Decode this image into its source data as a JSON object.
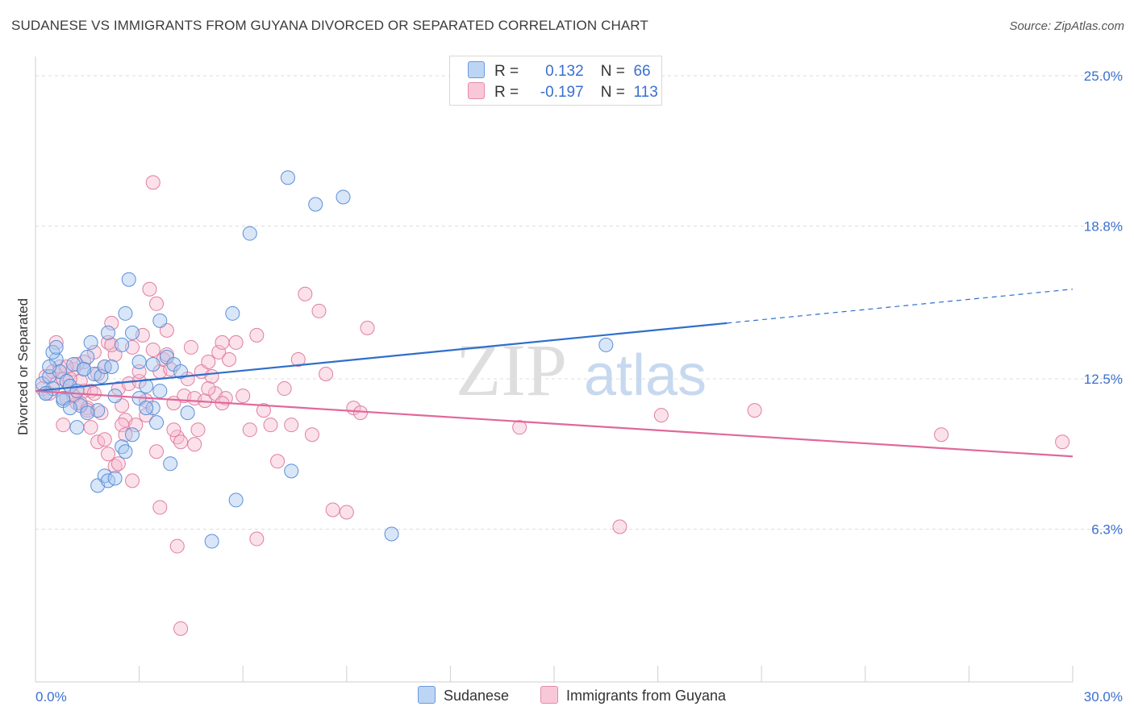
{
  "header": {
    "title": "SUDANESE VS IMMIGRANTS FROM GUYANA DIVORCED OR SEPARATED CORRELATION CHART",
    "source": "Source: ZipAtlas.com"
  },
  "legend": {
    "rows": [
      {
        "r_label": "R =",
        "r_value": "0.132",
        "n_label": "N =",
        "n_value": "66"
      },
      {
        "r_label": "R =",
        "r_value": "-0.197",
        "n_label": "N =",
        "n_value": "113"
      }
    ]
  },
  "watermark": {
    "zip": "ZIP",
    "atlas": "atlas"
  },
  "colors": {
    "sudanese_fill": "#a9c8f0",
    "sudanese_stroke": "#5b8fd8",
    "sudanese_line": "#2f6fcb",
    "guyana_fill": "#f7bcd0",
    "guyana_stroke": "#e07ea0",
    "guyana_line": "#e0689a",
    "axis_label": "#3a6fd0",
    "grid": "#dddddd"
  },
  "chart_data": {
    "type": "scatter",
    "xlabel": "",
    "ylabel": "Divorced or Separated",
    "xlim": [
      0,
      30
    ],
    "ylim": [
      0,
      25.8
    ],
    "x_tick_labels": [
      {
        "value": 0,
        "label": "0.0%"
      },
      {
        "value": 30,
        "label": "30.0%"
      }
    ],
    "y_tick_labels": [
      {
        "value": 6.3,
        "label": "6.3%"
      },
      {
        "value": 12.5,
        "label": "12.5%"
      },
      {
        "value": 18.8,
        "label": "18.8%"
      },
      {
        "value": 25.0,
        "label": "25.0%"
      }
    ],
    "grid": true,
    "legend_position": "bottom-center",
    "series": [
      {
        "name": "Sudanese",
        "trend": {
          "x0": 0,
          "y0": 12.0,
          "x1": 20.0,
          "y1": 14.8,
          "dash_to_x": 30.0,
          "dash_to_y": 16.2
        },
        "points": [
          [
            0.2,
            12.3
          ],
          [
            0.3,
            11.9
          ],
          [
            0.4,
            12.6
          ],
          [
            0.5,
            12.1
          ],
          [
            0.6,
            13.3
          ],
          [
            0.7,
            12.8
          ],
          [
            0.8,
            11.6
          ],
          [
            0.9,
            12.4
          ],
          [
            0.4,
            13.0
          ],
          [
            0.5,
            13.6
          ],
          [
            1.0,
            12.2
          ],
          [
            1.1,
            13.1
          ],
          [
            1.2,
            12.0
          ],
          [
            1.3,
            11.4
          ],
          [
            1.4,
            12.9
          ],
          [
            1.5,
            13.4
          ],
          [
            1.6,
            14.0
          ],
          [
            1.7,
            12.7
          ],
          [
            1.8,
            11.2
          ],
          [
            1.9,
            12.6
          ],
          [
            2.0,
            13.0
          ],
          [
            2.1,
            14.4
          ],
          [
            2.2,
            13.0
          ],
          [
            2.3,
            11.8
          ],
          [
            2.5,
            13.9
          ],
          [
            2.6,
            15.2
          ],
          [
            2.7,
            16.6
          ],
          [
            2.8,
            14.4
          ],
          [
            3.0,
            13.2
          ],
          [
            3.2,
            12.2
          ],
          [
            3.4,
            11.3
          ],
          [
            3.5,
            10.7
          ],
          [
            3.6,
            12.0
          ],
          [
            3.8,
            13.4
          ],
          [
            4.0,
            13.1
          ],
          [
            4.2,
            12.8
          ],
          [
            0.8,
            11.7
          ],
          [
            1.0,
            11.3
          ],
          [
            1.2,
            10.5
          ],
          [
            1.4,
            12.9
          ],
          [
            1.5,
            11.1
          ],
          [
            1.8,
            8.1
          ],
          [
            2.0,
            8.5
          ],
          [
            2.1,
            8.3
          ],
          [
            2.3,
            8.4
          ],
          [
            2.5,
            9.7
          ],
          [
            2.6,
            9.5
          ],
          [
            2.8,
            10.2
          ],
          [
            3.0,
            11.7
          ],
          [
            3.2,
            11.3
          ],
          [
            3.6,
            14.9
          ],
          [
            3.9,
            9.0
          ],
          [
            4.4,
            11.1
          ],
          [
            5.1,
            5.8
          ],
          [
            5.7,
            15.2
          ],
          [
            5.8,
            7.5
          ],
          [
            6.2,
            18.5
          ],
          [
            7.3,
            20.8
          ],
          [
            7.4,
            8.7
          ],
          [
            8.1,
            19.7
          ],
          [
            8.9,
            20.0
          ],
          [
            10.3,
            6.1
          ],
          [
            16.5,
            13.9
          ],
          [
            3.4,
            13.1
          ],
          [
            0.3,
            11.9
          ],
          [
            0.6,
            13.8
          ]
        ]
      },
      {
        "name": "Immigrants from Guyana",
        "trend": {
          "x0": 0,
          "y0": 12.0,
          "x1": 30.0,
          "y1": 9.3
        },
        "points": [
          [
            0.2,
            12.1
          ],
          [
            0.3,
            12.6
          ],
          [
            0.4,
            11.9
          ],
          [
            0.5,
            12.8
          ],
          [
            0.6,
            12.3
          ],
          [
            0.7,
            13.0
          ],
          [
            0.8,
            12.5
          ],
          [
            0.9,
            11.7
          ],
          [
            1.0,
            12.2
          ],
          [
            1.1,
            12.9
          ],
          [
            1.2,
            11.5
          ],
          [
            1.3,
            12.4
          ],
          [
            1.4,
            13.2
          ],
          [
            1.5,
            11.3
          ],
          [
            1.6,
            12.0
          ],
          [
            1.7,
            13.6
          ],
          [
            1.8,
            12.7
          ],
          [
            1.9,
            11.1
          ],
          [
            2.0,
            13.0
          ],
          [
            2.1,
            14.0
          ],
          [
            2.2,
            14.8
          ],
          [
            2.3,
            13.5
          ],
          [
            2.4,
            12.1
          ],
          [
            2.5,
            11.4
          ],
          [
            2.6,
            10.8
          ],
          [
            2.7,
            12.3
          ],
          [
            2.8,
            13.8
          ],
          [
            2.9,
            10.6
          ],
          [
            3.0,
            12.4
          ],
          [
            3.1,
            14.3
          ],
          [
            3.2,
            11.6
          ],
          [
            3.3,
            16.2
          ],
          [
            3.4,
            13.7
          ],
          [
            3.5,
            15.6
          ],
          [
            3.6,
            12.8
          ],
          [
            3.7,
            13.3
          ],
          [
            3.8,
            14.5
          ],
          [
            3.9,
            12.9
          ],
          [
            4.0,
            11.5
          ],
          [
            4.1,
            10.1
          ],
          [
            4.2,
            9.9
          ],
          [
            4.3,
            11.8
          ],
          [
            4.4,
            12.5
          ],
          [
            4.5,
            13.8
          ],
          [
            4.6,
            11.7
          ],
          [
            4.7,
            10.4
          ],
          [
            4.8,
            12.8
          ],
          [
            4.9,
            11.6
          ],
          [
            5.0,
            13.2
          ],
          [
            5.1,
            12.6
          ],
          [
            5.2,
            11.9
          ],
          [
            5.3,
            13.6
          ],
          [
            5.4,
            14.0
          ],
          [
            5.5,
            11.7
          ],
          [
            5.6,
            13.3
          ],
          [
            5.8,
            14.0
          ],
          [
            6.0,
            11.8
          ],
          [
            6.2,
            10.4
          ],
          [
            6.4,
            14.3
          ],
          [
            6.6,
            11.2
          ],
          [
            6.8,
            10.6
          ],
          [
            7.0,
            9.1
          ],
          [
            7.2,
            12.1
          ],
          [
            7.4,
            10.6
          ],
          [
            7.6,
            13.3
          ],
          [
            7.8,
            16.0
          ],
          [
            8.0,
            10.2
          ],
          [
            8.2,
            15.3
          ],
          [
            8.4,
            12.7
          ],
          [
            8.6,
            7.1
          ],
          [
            9.0,
            7.0
          ],
          [
            9.2,
            11.3
          ],
          [
            9.4,
            11.1
          ],
          [
            9.6,
            14.6
          ],
          [
            1.2,
            13.1
          ],
          [
            1.4,
            12.0
          ],
          [
            1.6,
            10.5
          ],
          [
            1.8,
            9.9
          ],
          [
            2.0,
            10.0
          ],
          [
            2.1,
            9.4
          ],
          [
            2.3,
            8.9
          ],
          [
            2.4,
            9.0
          ],
          [
            2.5,
            10.6
          ],
          [
            2.6,
            10.2
          ],
          [
            2.8,
            8.3
          ],
          [
            3.0,
            12.8
          ],
          [
            3.2,
            11.0
          ],
          [
            3.4,
            20.6
          ],
          [
            3.5,
            9.5
          ],
          [
            3.6,
            7.2
          ],
          [
            4.0,
            10.4
          ],
          [
            4.1,
            5.6
          ],
          [
            4.2,
            2.2
          ],
          [
            4.6,
            9.8
          ],
          [
            5.0,
            12.1
          ],
          [
            5.4,
            11.5
          ],
          [
            6.4,
            5.9
          ],
          [
            14.0,
            10.5
          ],
          [
            16.9,
            6.4
          ],
          [
            18.1,
            11.0
          ],
          [
            20.8,
            11.2
          ],
          [
            26.2,
            10.2
          ],
          [
            29.7,
            9.9
          ],
          [
            0.8,
            10.6
          ],
          [
            1.0,
            12.5
          ],
          [
            1.3,
            11.5
          ],
          [
            1.5,
            11.2
          ],
          [
            0.6,
            14.0
          ],
          [
            0.9,
            13.0
          ],
          [
            1.1,
            11.8
          ],
          [
            1.7,
            11.9
          ],
          [
            2.2,
            13.9
          ],
          [
            3.8,
            13.5
          ]
        ]
      }
    ]
  },
  "bottom_legend": {
    "items": [
      {
        "label": "Sudanese"
      },
      {
        "label": "Immigrants from Guyana"
      }
    ]
  }
}
